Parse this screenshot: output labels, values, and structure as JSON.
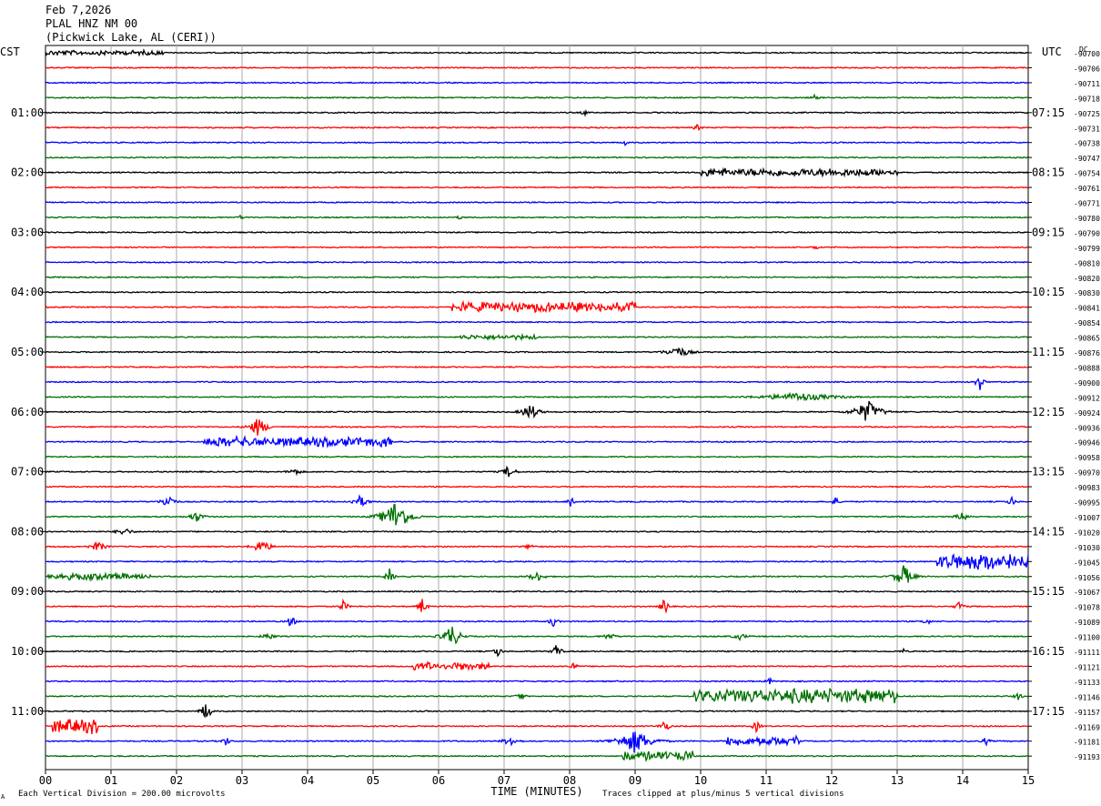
{
  "header": {
    "date": "Feb 7,2026",
    "station": "PLAL HNZ NM 00",
    "location": "(Pickwick Lake, AL (CERI))"
  },
  "left_axis_label": "CST",
  "right_axis_label": "UTC",
  "dc_label": "DC",
  "footer": {
    "left_mark": "A",
    "scale_note": "Each Vertical Division =  200.00 microvolts",
    "clip_note": "Traces clipped at plus/minus 5 vertical divisions"
  },
  "colors": {
    "trace_cycle": [
      "#000000",
      "#ff0000",
      "#0000ff",
      "#007000"
    ],
    "grid": "#aaaaaa"
  },
  "chart_data": {
    "type": "line",
    "title": "",
    "xlabel": "TIME (MINUTES)",
    "xlim": [
      0,
      15
    ],
    "x_ticks": [
      "00",
      "01",
      "02",
      "03",
      "04",
      "05",
      "06",
      "07",
      "08",
      "09",
      "10",
      "11",
      "12",
      "13",
      "14",
      "15"
    ],
    "left_time_labels": [
      "01:00",
      "02:00",
      "03:00",
      "04:00",
      "05:00",
      "06:00",
      "07:00",
      "08:00",
      "09:00",
      "10:00",
      "11:00"
    ],
    "right_time_labels": [
      "07:15",
      "08:15",
      "09:15",
      "10:15",
      "11:15",
      "12:15",
      "13:15",
      "14:15",
      "15:15",
      "16:15",
      "17:15"
    ],
    "dc_offsets": [
      "-90700",
      "-90706",
      "-90711",
      "-90718",
      "-90725",
      "-90731",
      "-90738",
      "-90747",
      "-90754",
      "-90761",
      "-90771",
      "-90780",
      "-90790",
      "-90799",
      "-90810",
      "-90820",
      "-90830",
      "-90841",
      "-90854",
      "-90865",
      "-90876",
      "-90888",
      "-90900",
      "-90912",
      "-90924",
      "-90936",
      "-90946",
      "-90958",
      "-90970",
      "-90983",
      "-90995",
      "-91007",
      "-91020",
      "-91030",
      "-91045",
      "-91056",
      "-91067",
      "-91078",
      "-91089",
      "-91100",
      "-91111",
      "-91121",
      "-91133",
      "-91146",
      "-91157",
      "-91169",
      "-91181",
      "-91193"
    ],
    "events": [
      {
        "row": 0,
        "start": 0.0,
        "end": 1.8,
        "amp": 3,
        "spike": false
      },
      {
        "row": 3,
        "start": 11.7,
        "end": 11.8,
        "amp": 4,
        "spike": true
      },
      {
        "row": 4,
        "start": 8.2,
        "end": 8.25,
        "amp": 4,
        "spike": true
      },
      {
        "row": 5,
        "start": 9.9,
        "end": 10.0,
        "amp": 4,
        "spike": true
      },
      {
        "row": 6,
        "start": 8.8,
        "end": 8.9,
        "amp": 3,
        "spike": true
      },
      {
        "row": 8,
        "start": 10.0,
        "end": 13.0,
        "amp": 5,
        "spike": false
      },
      {
        "row": 11,
        "start": 2.95,
        "end": 3.0,
        "amp": 3,
        "spike": true
      },
      {
        "row": 11,
        "start": 6.3,
        "end": 6.35,
        "amp": 3,
        "spike": true
      },
      {
        "row": 13,
        "start": 11.7,
        "end": 11.8,
        "amp": 3,
        "spike": true
      },
      {
        "row": 17,
        "start": 6.2,
        "end": 9.0,
        "amp": 6,
        "spike": false
      },
      {
        "row": 19,
        "start": 6.3,
        "end": 7.5,
        "amp": 3,
        "spike": false
      },
      {
        "row": 20,
        "start": 9.5,
        "end": 9.8,
        "amp": 7,
        "spike": true
      },
      {
        "row": 22,
        "start": 14.2,
        "end": 14.3,
        "amp": 12,
        "spike": true
      },
      {
        "row": 23,
        "start": 11.0,
        "end": 12.0,
        "amp": 5,
        "spike": true
      },
      {
        "row": 24,
        "start": 7.3,
        "end": 7.5,
        "amp": 10,
        "spike": true
      },
      {
        "row": 24,
        "start": 12.4,
        "end": 12.7,
        "amp": 14,
        "spike": true
      },
      {
        "row": 25,
        "start": 3.15,
        "end": 3.35,
        "amp": 12,
        "spike": true
      },
      {
        "row": 26,
        "start": 2.4,
        "end": 5.3,
        "amp": 6,
        "spike": false
      },
      {
        "row": 28,
        "start": 3.7,
        "end": 3.9,
        "amp": 4,
        "spike": true
      },
      {
        "row": 28,
        "start": 7.0,
        "end": 7.15,
        "amp": 8,
        "spike": true
      },
      {
        "row": 30,
        "start": 1.8,
        "end": 1.95,
        "amp": 10,
        "spike": true
      },
      {
        "row": 30,
        "start": 4.7,
        "end": 4.9,
        "amp": 7,
        "spike": true
      },
      {
        "row": 30,
        "start": 8.0,
        "end": 8.05,
        "amp": 10,
        "spike": true
      },
      {
        "row": 30,
        "start": 12.0,
        "end": 12.1,
        "amp": 6,
        "spike": true
      },
      {
        "row": 30,
        "start": 14.7,
        "end": 14.8,
        "amp": 6,
        "spike": true
      },
      {
        "row": 31,
        "start": 2.2,
        "end": 2.4,
        "amp": 6,
        "spike": true
      },
      {
        "row": 31,
        "start": 5.2,
        "end": 5.5,
        "amp": 20,
        "spike": true
      },
      {
        "row": 31,
        "start": 13.9,
        "end": 14.1,
        "amp": 5,
        "spike": true
      },
      {
        "row": 32,
        "start": 1.1,
        "end": 1.3,
        "amp": 5,
        "spike": true
      },
      {
        "row": 33,
        "start": 0.7,
        "end": 0.9,
        "amp": 6,
        "spike": true
      },
      {
        "row": 33,
        "start": 3.2,
        "end": 3.4,
        "amp": 9,
        "spike": true
      },
      {
        "row": 33,
        "start": 7.3,
        "end": 7.5,
        "amp": 3,
        "spike": true
      },
      {
        "row": 34,
        "start": 13.6,
        "end": 15.0,
        "amp": 10,
        "spike": false
      },
      {
        "row": 35,
        "start": 0.0,
        "end": 1.6,
        "amp": 4,
        "spike": false
      },
      {
        "row": 35,
        "start": 5.2,
        "end": 5.3,
        "amp": 9,
        "spike": true
      },
      {
        "row": 35,
        "start": 7.4,
        "end": 7.6,
        "amp": 6,
        "spike": true
      },
      {
        "row": 35,
        "start": 13.0,
        "end": 13.2,
        "amp": 14,
        "spike": true
      },
      {
        "row": 37,
        "start": 4.5,
        "end": 4.6,
        "amp": 8,
        "spike": true
      },
      {
        "row": 37,
        "start": 5.7,
        "end": 5.8,
        "amp": 10,
        "spike": true
      },
      {
        "row": 37,
        "start": 9.4,
        "end": 9.5,
        "amp": 10,
        "spike": true
      },
      {
        "row": 37,
        "start": 13.9,
        "end": 14.0,
        "amp": 7,
        "spike": true
      },
      {
        "row": 38,
        "start": 3.7,
        "end": 3.8,
        "amp": 8,
        "spike": true
      },
      {
        "row": 38,
        "start": 7.7,
        "end": 7.8,
        "amp": 7,
        "spike": true
      },
      {
        "row": 38,
        "start": 13.4,
        "end": 13.5,
        "amp": 5,
        "spike": true
      },
      {
        "row": 39,
        "start": 3.3,
        "end": 3.5,
        "amp": 4,
        "spike": true
      },
      {
        "row": 39,
        "start": 6.1,
        "end": 6.3,
        "amp": 14,
        "spike": true
      },
      {
        "row": 39,
        "start": 8.5,
        "end": 8.7,
        "amp": 4,
        "spike": true
      },
      {
        "row": 39,
        "start": 10.5,
        "end": 10.7,
        "amp": 4,
        "spike": true
      },
      {
        "row": 40,
        "start": 6.85,
        "end": 6.95,
        "amp": 7,
        "spike": true
      },
      {
        "row": 40,
        "start": 7.75,
        "end": 7.85,
        "amp": 10,
        "spike": true
      },
      {
        "row": 40,
        "start": 13.05,
        "end": 13.15,
        "amp": 3,
        "spike": true
      },
      {
        "row": 41,
        "start": 5.6,
        "end": 6.8,
        "amp": 5,
        "spike": false
      },
      {
        "row": 41,
        "start": 8.0,
        "end": 8.1,
        "amp": 6,
        "spike": true
      },
      {
        "row": 42,
        "start": 11.0,
        "end": 11.1,
        "amp": 4,
        "spike": true
      },
      {
        "row": 43,
        "start": 7.2,
        "end": 7.3,
        "amp": 6,
        "spike": true
      },
      {
        "row": 43,
        "start": 9.9,
        "end": 13.0,
        "amp": 9,
        "spike": false
      },
      {
        "row": 43,
        "start": 14.8,
        "end": 14.9,
        "amp": 5,
        "spike": true
      },
      {
        "row": 44,
        "start": 2.4,
        "end": 2.5,
        "amp": 14,
        "spike": true
      },
      {
        "row": 45,
        "start": 0.1,
        "end": 0.8,
        "amp": 9,
        "spike": false
      },
      {
        "row": 45,
        "start": 9.4,
        "end": 9.5,
        "amp": 9,
        "spike": true
      },
      {
        "row": 45,
        "start": 10.8,
        "end": 10.9,
        "amp": 7,
        "spike": true
      },
      {
        "row": 46,
        "start": 2.7,
        "end": 2.8,
        "amp": 6,
        "spike": true
      },
      {
        "row": 46,
        "start": 7.0,
        "end": 7.2,
        "amp": 6,
        "spike": true
      },
      {
        "row": 46,
        "start": 8.8,
        "end": 9.2,
        "amp": 14,
        "spike": true
      },
      {
        "row": 46,
        "start": 10.4,
        "end": 11.5,
        "amp": 6,
        "spike": false
      },
      {
        "row": 46,
        "start": 14.3,
        "end": 14.4,
        "amp": 5,
        "spike": true
      },
      {
        "row": 47,
        "start": 8.8,
        "end": 9.9,
        "amp": 6,
        "spike": false
      }
    ]
  }
}
